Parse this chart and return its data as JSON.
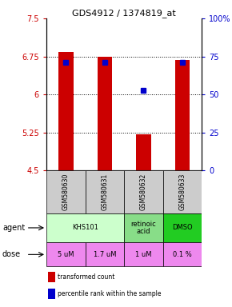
{
  "title": "GDS4912 / 1374819_at",
  "samples": [
    "GSM580630",
    "GSM580631",
    "GSM580632",
    "GSM580633"
  ],
  "bar_values": [
    6.84,
    6.75,
    5.22,
    6.68
  ],
  "bar_bottom": 4.5,
  "percentile_values": [
    6.63,
    6.63,
    6.08,
    6.63
  ],
  "ylim": [
    4.5,
    7.5
  ],
  "yticks_left": [
    4.5,
    5.25,
    6.0,
    6.75,
    7.5
  ],
  "yticks_right": [
    0,
    25,
    50,
    75,
    100
  ],
  "ytick_labels_left": [
    "4.5",
    "5.25",
    "6",
    "6.75",
    "7.5"
  ],
  "ytick_labels_right": [
    "0",
    "25",
    "50",
    "75",
    "100%"
  ],
  "hlines": [
    5.25,
    6.0,
    6.75
  ],
  "bar_color": "#cc0000",
  "percentile_color": "#0000cc",
  "agent_spans": [
    [
      0,
      2,
      "KHS101",
      "#ccffcc"
    ],
    [
      2,
      3,
      "retinoic\nacid",
      "#88dd88"
    ],
    [
      3,
      4,
      "DMSO",
      "#22cc22"
    ]
  ],
  "dose_labels": [
    "5 uM",
    "1.7 uM",
    "1 uM",
    "0.1 %"
  ],
  "dose_color": "#ee88ee",
  "sample_bg": "#cccccc",
  "legend_red": "transformed count",
  "legend_blue": "percentile rank within the sample"
}
